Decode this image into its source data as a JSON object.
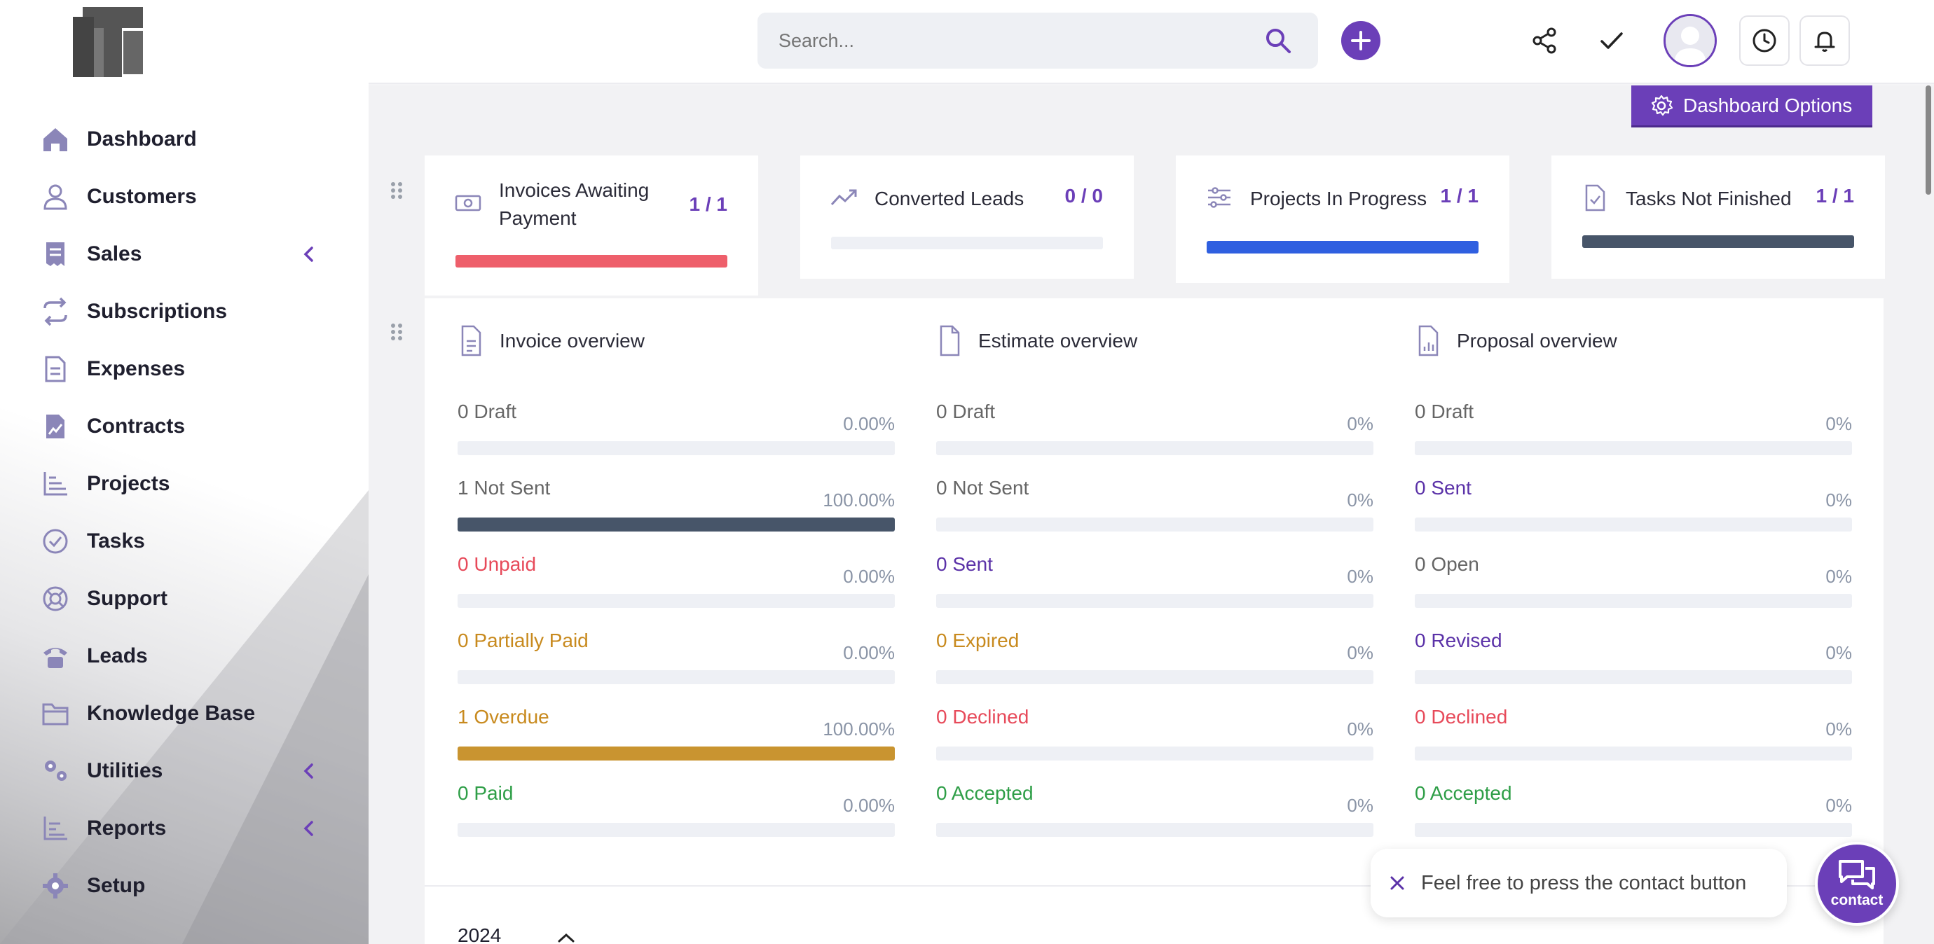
{
  "sidebar": {
    "logo": "logo",
    "items": [
      {
        "label": "Dashboard",
        "icon": "home-icon",
        "chevron": false
      },
      {
        "label": "Customers",
        "icon": "user-icon",
        "chevron": false
      },
      {
        "label": "Sales",
        "icon": "receipt-icon",
        "chevron": true
      },
      {
        "label": "Subscriptions",
        "icon": "repeat-icon",
        "chevron": false
      },
      {
        "label": "Expenses",
        "icon": "document-icon",
        "chevron": false
      },
      {
        "label": "Contracts",
        "icon": "contract-icon",
        "chevron": false
      },
      {
        "label": "Projects",
        "icon": "chart-icon",
        "chevron": false
      },
      {
        "label": "Tasks",
        "icon": "check-circle-icon",
        "chevron": false
      },
      {
        "label": "Support",
        "icon": "lifebuoy-icon",
        "chevron": false
      },
      {
        "label": "Leads",
        "icon": "phone-icon",
        "chevron": false
      },
      {
        "label": "Knowledge Base",
        "icon": "folder-icon",
        "chevron": false
      },
      {
        "label": "Utilities",
        "icon": "cogs-icon",
        "chevron": true
      },
      {
        "label": "Reports",
        "icon": "report-icon",
        "chevron": true
      },
      {
        "label": "Setup",
        "icon": "gear-icon",
        "chevron": false
      }
    ]
  },
  "header": {
    "search_placeholder": "Search..."
  },
  "dashboard_options_label": "Dashboard Options",
  "stats": [
    {
      "title": "Invoices Awaiting Payment",
      "count": "1 / 1",
      "progress": 1.0,
      "color": "#ee5f6b",
      "icon": "money-icon"
    },
    {
      "title": "Converted Leads",
      "count": "0 / 0",
      "progress": 0.0,
      "color": "#6b3fb8",
      "icon": "trending-up-icon"
    },
    {
      "title": "Projects In Progress",
      "count": "1 / 1",
      "progress": 1.0,
      "color": "#2f5fe0",
      "icon": "sliders-icon"
    },
    {
      "title": "Tasks Not Finished",
      "count": "1 / 1",
      "progress": 1.0,
      "color": "#475569",
      "icon": "file-check-icon"
    }
  ],
  "overview": {
    "invoice": {
      "title": "Invoice overview",
      "rows": [
        {
          "label": "0 Draft",
          "pct": "0.00%",
          "value": 0,
          "color": "#666666",
          "fill": "#475569"
        },
        {
          "label": "1 Not Sent",
          "pct": "100.00%",
          "value": 1,
          "color": "#666666",
          "fill": "#475569"
        },
        {
          "label": "0 Unpaid",
          "pct": "0.00%",
          "value": 0,
          "color": "#e74a5a",
          "fill": "#e74a5a"
        },
        {
          "label": "0 Partially Paid",
          "pct": "0.00%",
          "value": 0,
          "color": "#c88a1e",
          "fill": "#c88a1e"
        },
        {
          "label": "1 Overdue",
          "pct": "100.00%",
          "value": 1,
          "color": "#c88a1e",
          "fill": "#c99430"
        },
        {
          "label": "0 Paid",
          "pct": "0.00%",
          "value": 0,
          "color": "#2e9e47",
          "fill": "#2e9e47"
        }
      ]
    },
    "estimate": {
      "title": "Estimate overview",
      "rows": [
        {
          "label": "0 Draft",
          "pct": "0%",
          "value": 0,
          "color": "#666666",
          "fill": "#475569"
        },
        {
          "label": "0 Not Sent",
          "pct": "0%",
          "value": 0,
          "color": "#666666",
          "fill": "#475569"
        },
        {
          "label": "0 Sent",
          "pct": "0%",
          "value": 0,
          "color": "#5b32a8",
          "fill": "#5b32a8"
        },
        {
          "label": "0 Expired",
          "pct": "0%",
          "value": 0,
          "color": "#c88a1e",
          "fill": "#c88a1e"
        },
        {
          "label": "0 Declined",
          "pct": "0%",
          "value": 0,
          "color": "#e74a5a",
          "fill": "#e74a5a"
        },
        {
          "label": "0 Accepted",
          "pct": "0%",
          "value": 0,
          "color": "#2e9e47",
          "fill": "#2e9e47"
        }
      ]
    },
    "proposal": {
      "title": "Proposal overview",
      "rows": [
        {
          "label": "0 Draft",
          "pct": "0%",
          "value": 0,
          "color": "#666666",
          "fill": "#475569"
        },
        {
          "label": "0 Sent",
          "pct": "0%",
          "value": 0,
          "color": "#5b32a8",
          "fill": "#5b32a8"
        },
        {
          "label": "0 Open",
          "pct": "0%",
          "value": 0,
          "color": "#666666",
          "fill": "#475569"
        },
        {
          "label": "0 Revised",
          "pct": "0%",
          "value": 0,
          "color": "#5b32a8",
          "fill": "#5b32a8"
        },
        {
          "label": "0 Declined",
          "pct": "0%",
          "value": 0,
          "color": "#e74a5a",
          "fill": "#e74a5a"
        },
        {
          "label": "0 Accepted",
          "pct": "0%",
          "value": 0,
          "color": "#2e9e47",
          "fill": "#2e9e47"
        }
      ]
    }
  },
  "year_label": "2024",
  "contact": {
    "tooltip": "Feel free to press the contact button",
    "button_label": "contact"
  },
  "colors": {
    "accent": "#6b3fb8"
  }
}
